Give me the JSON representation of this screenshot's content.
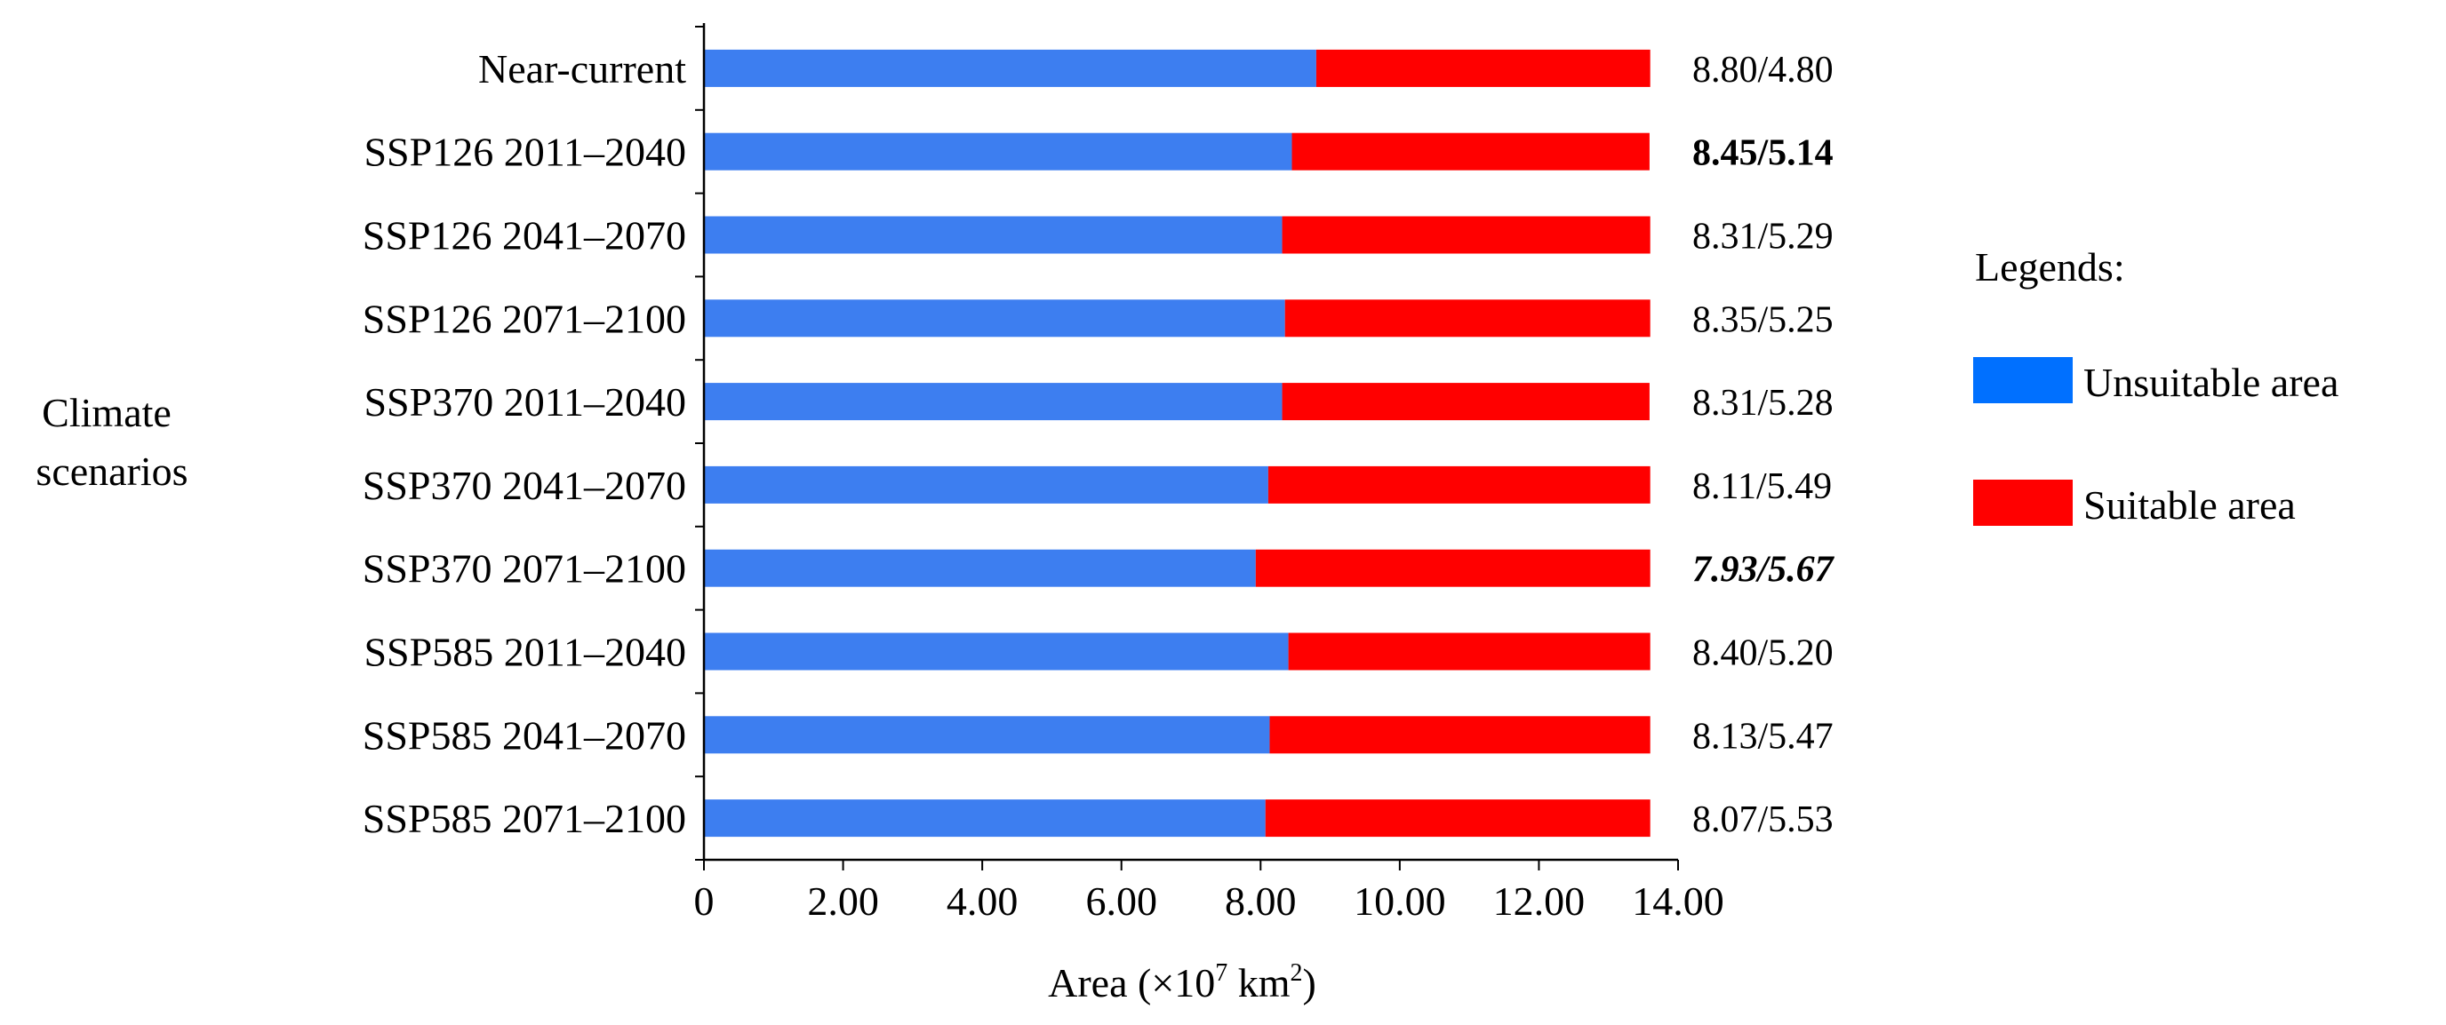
{
  "chart_data": {
    "type": "bar",
    "stacked": true,
    "orientation": "horizontal",
    "categories": [
      "Near-current",
      "SSP126 2011–2040",
      "SSP126 2041–2070",
      "SSP126 2071–2100",
      "SSP370 2011–2040",
      "SSP370 2041–2070",
      "SSP370 2071–2100",
      "SSP585 2011–2040",
      "SSP585 2041–2070",
      "SSP585 2071–2100"
    ],
    "series": [
      {
        "name": "Unsuitable area",
        "color": "#3d7ef0",
        "values": [
          8.8,
          8.45,
          8.31,
          8.35,
          8.31,
          8.11,
          7.93,
          8.4,
          8.13,
          8.07
        ]
      },
      {
        "name": "Suitable area",
        "color": "#ff0000",
        "values": [
          4.8,
          5.14,
          5.29,
          5.25,
          5.28,
          5.49,
          5.67,
          5.2,
          5.47,
          5.53
        ]
      }
    ],
    "data_labels": [
      "8.80/4.80",
      "8.45/5.14",
      "8.31/5.29",
      "8.35/5.25",
      "8.31/5.28",
      "8.11/5.49",
      "7.93/5.67",
      "8.40/5.20",
      "8.13/5.47",
      "8.07/5.53"
    ],
    "label_styles": [
      "normal",
      "bold",
      "normal",
      "normal",
      "normal",
      "normal",
      "bold-italic",
      "normal",
      "normal",
      "normal"
    ],
    "ylabel_lines": [
      "Climate",
      "scenarios"
    ],
    "xlabel_prefix": "Area (×10",
    "xlabel_exp1": "7",
    "xlabel_mid": " km",
    "xlabel_exp2": "2",
    "xlabel_suffix": ")",
    "xlim": [
      0,
      14
    ],
    "x_ticks": [
      0,
      2,
      4,
      6,
      8,
      10,
      12,
      14
    ],
    "x_tick_labels": [
      "0",
      "2.00",
      "4.00",
      "6.00",
      "8.00",
      "10.00",
      "12.00",
      "14.00"
    ],
    "legend": {
      "title": "Legends:",
      "position": "right",
      "items": [
        {
          "label": "Unsuitable area",
          "color": "#0070ff"
        },
        {
          "label": "Suitable area",
          "color": "#ff0000"
        }
      ]
    }
  }
}
